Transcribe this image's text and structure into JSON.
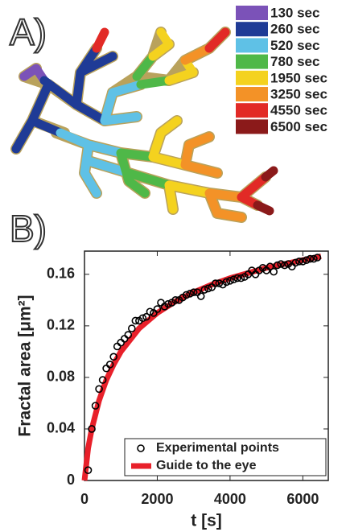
{
  "panel_a": {
    "label": "A)",
    "legend": [
      {
        "label": "130 sec",
        "color": "#7b52b8"
      },
      {
        "label": "260 sec",
        "color": "#1f3b96"
      },
      {
        "label": "520 sec",
        "color": "#5fc1e6"
      },
      {
        "label": "780 sec",
        "color": "#4fb848"
      },
      {
        "label": "1950 sec",
        "color": "#f4d21f"
      },
      {
        "label": "3250 sec",
        "color": "#f39227"
      },
      {
        "label": "4550 sec",
        "color": "#e22a26"
      },
      {
        "label": "6500 sec",
        "color": "#8b1a1a"
      }
    ]
  },
  "panel_b_label": "B)",
  "chart_data": {
    "type": "scatter",
    "xlabel": "t [s]",
    "ylabel": "Fractal area [μm²]",
    "xlim": [
      0,
      6700
    ],
    "ylim": [
      0,
      0.178
    ],
    "xticks": [
      0,
      2000,
      4000,
      6000
    ],
    "yticks": [
      0,
      0.04,
      0.08,
      0.12,
      0.16
    ],
    "series": [
      {
        "name": "Experimental points",
        "type": "scatter",
        "color": "#000000",
        "x": [
          100,
          200,
          300,
          400,
          500,
          600,
          700,
          800,
          900,
          1000,
          1100,
          1200,
          1300,
          1400,
          1500,
          1600,
          1700,
          1800,
          1900,
          2000,
          2100,
          2200,
          2300,
          2400,
          2500,
          2600,
          2700,
          2800,
          2900,
          3000,
          3100,
          3200,
          3300,
          3400,
          3500,
          3600,
          3700,
          3800,
          3900,
          4000,
          4100,
          4200,
          4300,
          4400,
          4500,
          4600,
          4700,
          4800,
          4900,
          5000,
          5100,
          5200,
          5300,
          5400,
          5500,
          5600,
          5700,
          5800,
          5900,
          6000,
          6100,
          6200,
          6300,
          6400
        ],
        "values": [
          0.008,
          0.04,
          0.058,
          0.071,
          0.078,
          0.087,
          0.09,
          0.096,
          0.104,
          0.107,
          0.11,
          0.113,
          0.118,
          0.124,
          0.124,
          0.126,
          0.127,
          0.131,
          0.13,
          0.133,
          0.138,
          0.135,
          0.137,
          0.138,
          0.14,
          0.14,
          0.142,
          0.144,
          0.145,
          0.146,
          0.146,
          0.143,
          0.148,
          0.149,
          0.15,
          0.153,
          0.153,
          0.152,
          0.154,
          0.155,
          0.156,
          0.157,
          0.157,
          0.158,
          0.16,
          0.163,
          0.16,
          0.163,
          0.165,
          0.163,
          0.166,
          0.162,
          0.167,
          0.168,
          0.167,
          0.168,
          0.166,
          0.169,
          0.17,
          0.17,
          0.171,
          0.172,
          0.172,
          0.173
        ]
      },
      {
        "name": "Guide to the eye",
        "type": "line",
        "color": "#e8202a",
        "x": [
          0,
          100,
          200,
          400,
          600,
          800,
          1000,
          1500,
          2000,
          2500,
          3000,
          3500,
          4000,
          4500,
          5000,
          5500,
          6000,
          6500
        ],
        "values": [
          0,
          0.025,
          0.04,
          0.062,
          0.078,
          0.09,
          0.1,
          0.118,
          0.13,
          0.139,
          0.146,
          0.152,
          0.157,
          0.161,
          0.165,
          0.168,
          0.171,
          0.174
        ]
      }
    ]
  }
}
